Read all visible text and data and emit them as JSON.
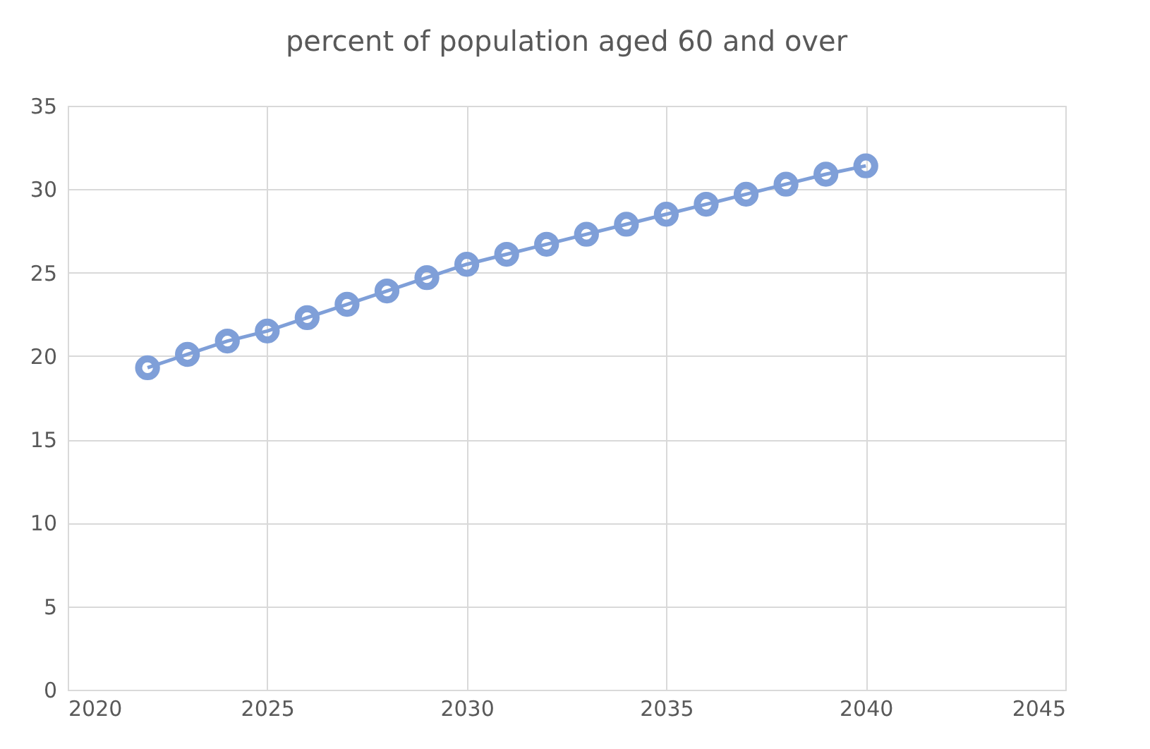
{
  "chart_data": {
    "type": "line",
    "title": "percent of population aged 60  and over",
    "x": [
      2022,
      2023,
      2024,
      2025,
      2026,
      2027,
      2028,
      2029,
      2030,
      2031,
      2032,
      2033,
      2034,
      2035,
      2036,
      2037,
      2038,
      2039,
      2040
    ],
    "series": [
      {
        "color": "#7f9fd8",
        "values": [
          19.3,
          20.1,
          20.9,
          21.5,
          22.3,
          23.1,
          23.9,
          24.7,
          25.5,
          26.1,
          26.7,
          27.3,
          27.9,
          28.5,
          29.1,
          29.7,
          30.3,
          30.9,
          31.4
        ]
      }
    ],
    "xlim": [
      2020,
      2045
    ],
    "xticks": [
      2020,
      2025,
      2030,
      2035,
      2040,
      2045
    ],
    "ylim": [
      0,
      35
    ],
    "yticks": [
      0,
      5,
      10,
      15,
      20,
      25,
      30,
      35
    ],
    "grid": true,
    "marker": "circle",
    "legend": false
  }
}
